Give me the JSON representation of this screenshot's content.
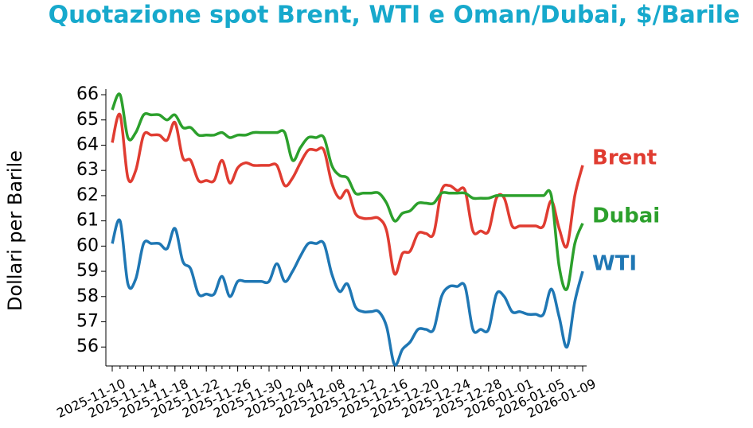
{
  "chart_data": {
    "type": "line",
    "title": "Quotazione spot Brent, WTI e Oman/Dubai, $/Barile",
    "y_label": "Dollari per Barile",
    "x": [
      "2025-11-10",
      "2025-11-11",
      "2025-11-12",
      "2025-11-13",
      "2025-11-14",
      "2025-11-15",
      "2025-11-16",
      "2025-11-17",
      "2025-11-18",
      "2025-11-19",
      "2025-11-20",
      "2025-11-21",
      "2025-11-22",
      "2025-11-23",
      "2025-11-24",
      "2025-11-25",
      "2025-11-26",
      "2025-11-27",
      "2025-11-28",
      "2025-11-29",
      "2025-11-30",
      "2025-12-01",
      "2025-12-02",
      "2025-12-03",
      "2025-12-04",
      "2025-12-05",
      "2025-12-06",
      "2025-12-07",
      "2025-12-08",
      "2025-12-09",
      "2025-12-10",
      "2025-12-11",
      "2025-12-12",
      "2025-12-13",
      "2025-12-14",
      "2025-12-15",
      "2025-12-16",
      "2025-12-17",
      "2025-12-18",
      "2025-12-19",
      "2025-12-20",
      "2025-12-21",
      "2025-12-22",
      "2025-12-23",
      "2025-12-24",
      "2025-12-25",
      "2025-12-26",
      "2025-12-27",
      "2025-12-28",
      "2025-12-29",
      "2025-12-30",
      "2025-12-31",
      "2026-01-01",
      "2026-01-02",
      "2026-01-03",
      "2026-01-04",
      "2026-01-05",
      "2026-01-06",
      "2026-01-07",
      "2026-01-08",
      "2026-01-09"
    ],
    "series": [
      {
        "name": "Brent",
        "color": "#e03c31",
        "values": [
          64.1,
          65.2,
          62.7,
          63.0,
          64.4,
          64.4,
          64.4,
          64.2,
          64.9,
          63.5,
          63.4,
          62.6,
          62.6,
          62.6,
          63.4,
          62.5,
          63.1,
          63.3,
          63.2,
          63.2,
          63.2,
          63.2,
          62.4,
          62.7,
          63.3,
          63.8,
          63.8,
          63.8,
          62.5,
          61.9,
          62.2,
          61.3,
          61.1,
          61.1,
          61.1,
          60.6,
          58.9,
          59.7,
          59.8,
          60.5,
          60.5,
          60.5,
          62.2,
          62.4,
          62.2,
          62.2,
          60.6,
          60.6,
          60.6,
          61.9,
          61.9,
          60.8,
          60.8,
          60.8,
          60.8,
          60.8,
          61.8,
          60.7,
          60.0,
          62.0,
          63.2
        ]
      },
      {
        "name": "Dubai",
        "color": "#2ca02c",
        "values": [
          65.4,
          66.0,
          64.3,
          64.5,
          65.2,
          65.2,
          65.2,
          65.0,
          65.2,
          64.7,
          64.7,
          64.4,
          64.4,
          64.4,
          64.5,
          64.3,
          64.4,
          64.4,
          64.5,
          64.5,
          64.5,
          64.5,
          64.5,
          63.4,
          63.9,
          64.3,
          64.3,
          64.3,
          63.2,
          62.8,
          62.7,
          62.1,
          62.1,
          62.1,
          62.1,
          61.7,
          61.0,
          61.3,
          61.4,
          61.7,
          61.7,
          61.7,
          62.1,
          62.1,
          62.1,
          62.1,
          61.9,
          61.9,
          61.9,
          62.0,
          62.0,
          62.0,
          62.0,
          62.0,
          62.0,
          62.0,
          62.0,
          59.2,
          58.3,
          60.1,
          60.9
        ]
      },
      {
        "name": "WTI",
        "color": "#1f77b4",
        "values": [
          60.1,
          61.0,
          58.5,
          58.7,
          60.1,
          60.1,
          60.1,
          59.9,
          60.7,
          59.4,
          59.1,
          58.1,
          58.1,
          58.1,
          58.8,
          58.0,
          58.6,
          58.6,
          58.6,
          58.6,
          58.6,
          59.3,
          58.6,
          59.0,
          59.6,
          60.1,
          60.1,
          60.1,
          58.9,
          58.2,
          58.5,
          57.6,
          57.4,
          57.4,
          57.4,
          56.8,
          55.3,
          55.9,
          56.2,
          56.7,
          56.7,
          56.7,
          58.0,
          58.4,
          58.4,
          58.4,
          56.7,
          56.7,
          56.7,
          58.1,
          58.0,
          57.4,
          57.4,
          57.3,
          57.3,
          57.3,
          58.3,
          57.2,
          56.0,
          57.8,
          59.0
        ]
      }
    ],
    "ylim": [
      55.25,
      66.2
    ],
    "yticks": [
      56,
      57,
      58,
      59,
      60,
      61,
      62,
      63,
      64,
      65,
      66
    ],
    "xticks": [
      "2025-11-10",
      "2025-11-14",
      "2025-11-18",
      "2025-11-22",
      "2025-11-26",
      "2025-11-30",
      "2025-12-04",
      "2025-12-08",
      "2025-12-12",
      "2025-12-16",
      "2025-12-20",
      "2025-12-24",
      "2025-12-28",
      "2026-01-01",
      "2026-01-05",
      "2026-01-09"
    ]
  }
}
